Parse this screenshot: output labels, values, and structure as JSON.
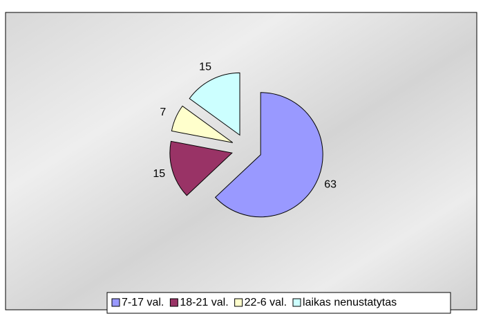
{
  "chart_data": {
    "type": "pie",
    "categories": [
      "7-17 val.",
      "18-21 val.",
      "22-6 val.",
      "laikas nenustatytas"
    ],
    "values": [
      63,
      15,
      7,
      15
    ],
    "colors": [
      "#9999ff",
      "#993366",
      "#ffffcc",
      "#ccffff"
    ],
    "exploded": true,
    "legend": "bottom"
  }
}
